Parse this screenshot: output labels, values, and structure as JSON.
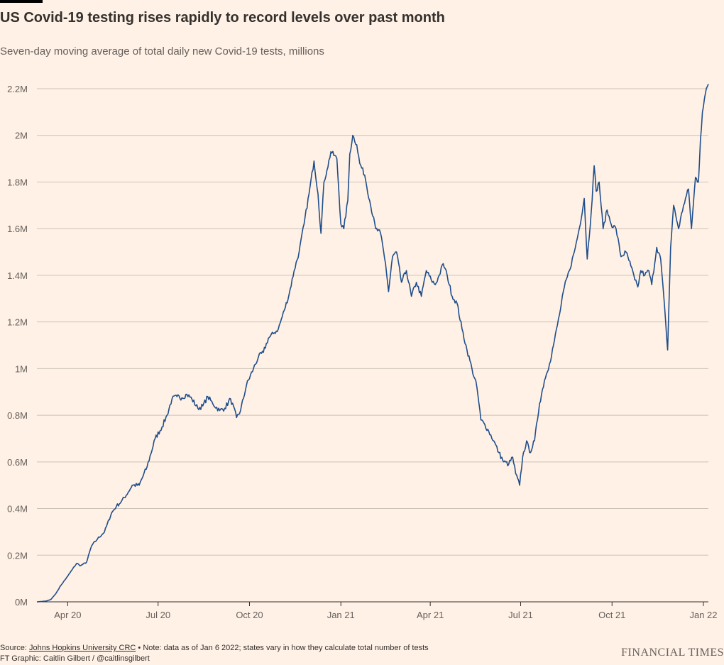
{
  "header": {
    "title": "US Covid-19 testing rises rapidly to record levels over past month",
    "subtitle": "Seven-day moving average of total daily new Covid-19 tests, millions"
  },
  "chart_data": {
    "type": "line",
    "title": "US Covid-19 testing rises rapidly to record levels over past month",
    "subtitle": "Seven-day moving average of total daily new Covid-19 tests, millions",
    "xlabel": "",
    "ylabel": "",
    "ylim": [
      0,
      2.2
    ],
    "y_ticks": [
      0,
      0.2,
      0.4,
      0.6,
      0.8,
      1.0,
      1.2,
      1.4,
      1.6,
      1.8,
      2.0,
      2.2
    ],
    "y_tick_labels": [
      "0M",
      "0.2M",
      "0.4M",
      "0.6M",
      "0.8M",
      "1M",
      "1.2M",
      "1.4M",
      "1.6M",
      "1.8M",
      "2M",
      "2.2M"
    ],
    "x_tick_dates": [
      "2020-04-01",
      "2020-07-01",
      "2020-10-01",
      "2021-01-01",
      "2021-04-01",
      "2021-07-01",
      "2021-10-01",
      "2022-01-01"
    ],
    "x_tick_labels": [
      "Apr 20",
      "Jul 20",
      "Oct 20",
      "Jan 21",
      "Apr 21",
      "Jul 21",
      "Oct 21",
      "Jan 22"
    ],
    "xlim": [
      "2020-03-01",
      "2022-01-06"
    ],
    "grid": true,
    "series": [
      {
        "name": "Seven-day moving average of total daily new tests (millions)",
        "color": "#1f4e8c",
        "points": [
          [
            "2020-03-01",
            0.0
          ],
          [
            "2020-03-10",
            0.003
          ],
          [
            "2020-03-15",
            0.01
          ],
          [
            "2020-03-20",
            0.035
          ],
          [
            "2020-03-25",
            0.07
          ],
          [
            "2020-04-01",
            0.11
          ],
          [
            "2020-04-05",
            0.135
          ],
          [
            "2020-04-10",
            0.165
          ],
          [
            "2020-04-14",
            0.155
          ],
          [
            "2020-04-20",
            0.17
          ],
          [
            "2020-04-25",
            0.24
          ],
          [
            "2020-05-01",
            0.27
          ],
          [
            "2020-05-08",
            0.3
          ],
          [
            "2020-05-15",
            0.38
          ],
          [
            "2020-05-20",
            0.41
          ],
          [
            "2020-05-25",
            0.43
          ],
          [
            "2020-06-01",
            0.47
          ],
          [
            "2020-06-05",
            0.5
          ],
          [
            "2020-06-12",
            0.5
          ],
          [
            "2020-06-20",
            0.58
          ],
          [
            "2020-06-28",
            0.7
          ],
          [
            "2020-07-05",
            0.75
          ],
          [
            "2020-07-10",
            0.8
          ],
          [
            "2020-07-15",
            0.87
          ],
          [
            "2020-07-20",
            0.88
          ],
          [
            "2020-07-25",
            0.875
          ],
          [
            "2020-07-30",
            0.89
          ],
          [
            "2020-08-04",
            0.87
          ],
          [
            "2020-08-10",
            0.83
          ],
          [
            "2020-08-15",
            0.84
          ],
          [
            "2020-08-20",
            0.88
          ],
          [
            "2020-08-25",
            0.85
          ],
          [
            "2020-09-01",
            0.82
          ],
          [
            "2020-09-06",
            0.83
          ],
          [
            "2020-09-12",
            0.87
          ],
          [
            "2020-09-18",
            0.79
          ],
          [
            "2020-09-22",
            0.82
          ],
          [
            "2020-09-28",
            0.93
          ],
          [
            "2020-10-05",
            1.0
          ],
          [
            "2020-10-10",
            1.05
          ],
          [
            "2020-10-15",
            1.07
          ],
          [
            "2020-10-20",
            1.13
          ],
          [
            "2020-10-25",
            1.15
          ],
          [
            "2020-10-30",
            1.17
          ],
          [
            "2020-11-05",
            1.25
          ],
          [
            "2020-11-10",
            1.32
          ],
          [
            "2020-11-15",
            1.42
          ],
          [
            "2020-11-20",
            1.5
          ],
          [
            "2020-11-25",
            1.62
          ],
          [
            "2020-11-30",
            1.75
          ],
          [
            "2020-12-05",
            1.89
          ],
          [
            "2020-12-09",
            1.75
          ],
          [
            "2020-12-12",
            1.58
          ],
          [
            "2020-12-15",
            1.8
          ],
          [
            "2020-12-18",
            1.85
          ],
          [
            "2020-12-22",
            1.93
          ],
          [
            "2020-12-28",
            1.9
          ],
          [
            "2021-01-01",
            1.62
          ],
          [
            "2021-01-04",
            1.6
          ],
          [
            "2021-01-08",
            1.72
          ],
          [
            "2021-01-10",
            1.92
          ],
          [
            "2021-01-13",
            2.0
          ],
          [
            "2021-01-17",
            1.96
          ],
          [
            "2021-01-20",
            1.88
          ],
          [
            "2021-01-25",
            1.83
          ],
          [
            "2021-01-30",
            1.72
          ],
          [
            "2021-02-05",
            1.6
          ],
          [
            "2021-02-10",
            1.58
          ],
          [
            "2021-02-15",
            1.45
          ],
          [
            "2021-02-18",
            1.33
          ],
          [
            "2021-02-22",
            1.48
          ],
          [
            "2021-02-26",
            1.5
          ],
          [
            "2021-03-03",
            1.37
          ],
          [
            "2021-03-08",
            1.42
          ],
          [
            "2021-03-13",
            1.31
          ],
          [
            "2021-03-18",
            1.37
          ],
          [
            "2021-03-23",
            1.31
          ],
          [
            "2021-03-28",
            1.42
          ],
          [
            "2021-04-02",
            1.38
          ],
          [
            "2021-04-06",
            1.36
          ],
          [
            "2021-04-10",
            1.4
          ],
          [
            "2021-04-14",
            1.45
          ],
          [
            "2021-04-18",
            1.4
          ],
          [
            "2021-04-23",
            1.31
          ],
          [
            "2021-04-28",
            1.28
          ],
          [
            "2021-05-03",
            1.17
          ],
          [
            "2021-05-08",
            1.08
          ],
          [
            "2021-05-13",
            1.0
          ],
          [
            "2021-05-18",
            0.92
          ],
          [
            "2021-05-22",
            0.78
          ],
          [
            "2021-05-26",
            0.76
          ],
          [
            "2021-05-30",
            0.73
          ],
          [
            "2021-06-04",
            0.69
          ],
          [
            "2021-06-09",
            0.64
          ],
          [
            "2021-06-14",
            0.6
          ],
          [
            "2021-06-19",
            0.59
          ],
          [
            "2021-06-23",
            0.62
          ],
          [
            "2021-06-26",
            0.55
          ],
          [
            "2021-06-30",
            0.5
          ],
          [
            "2021-07-03",
            0.62
          ],
          [
            "2021-07-07",
            0.69
          ],
          [
            "2021-07-10",
            0.64
          ],
          [
            "2021-07-15",
            0.69
          ],
          [
            "2021-07-20",
            0.85
          ],
          [
            "2021-07-25",
            0.95
          ],
          [
            "2021-07-30",
            1.02
          ],
          [
            "2021-08-04",
            1.12
          ],
          [
            "2021-08-09",
            1.23
          ],
          [
            "2021-08-14",
            1.35
          ],
          [
            "2021-08-19",
            1.42
          ],
          [
            "2021-08-24",
            1.5
          ],
          [
            "2021-08-29",
            1.6
          ],
          [
            "2021-09-03",
            1.73
          ],
          [
            "2021-09-06",
            1.47
          ],
          [
            "2021-09-10",
            1.67
          ],
          [
            "2021-09-13",
            1.87
          ],
          [
            "2021-09-15",
            1.76
          ],
          [
            "2021-09-18",
            1.8
          ],
          [
            "2021-09-22",
            1.6
          ],
          [
            "2021-09-26",
            1.68
          ],
          [
            "2021-09-30",
            1.62
          ],
          [
            "2021-10-05",
            1.6
          ],
          [
            "2021-10-10",
            1.48
          ],
          [
            "2021-10-15",
            1.5
          ],
          [
            "2021-10-20",
            1.44
          ],
          [
            "2021-10-24",
            1.38
          ],
          [
            "2021-10-27",
            1.35
          ],
          [
            "2021-10-30",
            1.42
          ],
          [
            "2021-11-03",
            1.4
          ],
          [
            "2021-11-07",
            1.42
          ],
          [
            "2021-11-10",
            1.36
          ],
          [
            "2021-11-15",
            1.52
          ],
          [
            "2021-11-19",
            1.47
          ],
          [
            "2021-11-24",
            1.2
          ],
          [
            "2021-11-26",
            1.08
          ],
          [
            "2021-11-29",
            1.52
          ],
          [
            "2021-12-02",
            1.7
          ],
          [
            "2021-12-07",
            1.6
          ],
          [
            "2021-12-12",
            1.7
          ],
          [
            "2021-12-17",
            1.77
          ],
          [
            "2021-12-20",
            1.6
          ],
          [
            "2021-12-24",
            1.82
          ],
          [
            "2021-12-27",
            1.8
          ],
          [
            "2021-12-29",
            1.98
          ],
          [
            "2021-12-31",
            2.1
          ],
          [
            "2022-01-03",
            2.18
          ],
          [
            "2022-01-06",
            2.22
          ]
        ]
      }
    ]
  },
  "footer": {
    "source_prefix": "Source: ",
    "source_link": "Johns Hopkins University CRC",
    "source_note": " • Note: data as of Jan 6 2022; states vary in how they calculate total number of tests",
    "credit": "FT Graphic: Caitlin Gilbert / @caitlinsgilbert",
    "brand": "FINANCIAL TIMES"
  },
  "colors": {
    "background": "#fff1e5",
    "line": "#1f4e8c",
    "grid": "#ccc1b7",
    "axis": "#33302e"
  }
}
